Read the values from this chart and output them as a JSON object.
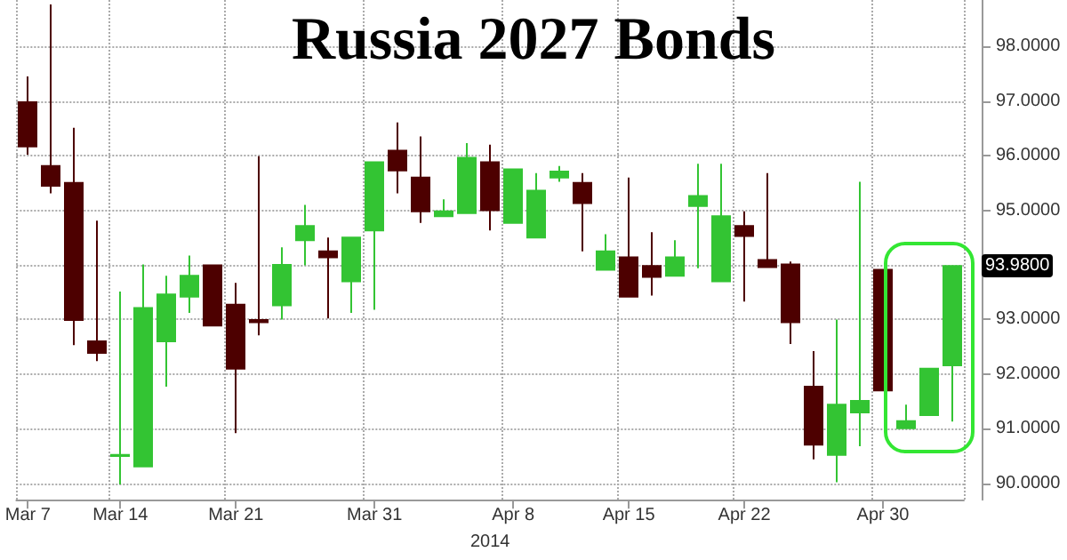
{
  "chart_data": {
    "type": "candlestick",
    "title": "Russia 2027 Bonds",
    "xlabel": "2014",
    "categories": [
      "Mar 7",
      null,
      null,
      null,
      "Mar 14",
      null,
      null,
      null,
      null,
      "Mar 21",
      null,
      null,
      null,
      null,
      null,
      "Mar 31",
      null,
      null,
      null,
      null,
      null,
      "Apr 8",
      null,
      null,
      null,
      null,
      "Apr 15",
      null,
      null,
      null,
      null,
      "Apr 22",
      null,
      null,
      null,
      null,
      null,
      "Apr 30",
      null,
      null,
      null
    ],
    "ohlc": [
      [
        96.98,
        97.45,
        96.02,
        96.17
      ],
      [
        95.81,
        98.77,
        95.31,
        95.45
      ],
      [
        95.5,
        96.51,
        92.53,
        92.99
      ],
      [
        92.6,
        94.81,
        92.24,
        92.39
      ],
      [
        90.5,
        93.51,
        89.98,
        90.52
      ],
      [
        90.31,
        94.01,
        90.31,
        93.21
      ],
      [
        92.6,
        93.8,
        91.77,
        93.46
      ],
      [
        93.42,
        94.17,
        93.12,
        93.8
      ],
      [
        93.99,
        93.99,
        92.89,
        92.89
      ],
      [
        93.27,
        93.67,
        90.92,
        92.1
      ],
      [
        92.99,
        95.99,
        92.71,
        92.95
      ],
      [
        93.26,
        94.32,
        93.0,
        94.0
      ],
      [
        94.45,
        95.1,
        93.99,
        94.71
      ],
      [
        94.25,
        94.5,
        93.02,
        94.14
      ],
      [
        93.7,
        94.5,
        93.12,
        94.5
      ],
      [
        94.63,
        95.88,
        93.18,
        95.88
      ],
      [
        96.09,
        96.61,
        95.31,
        95.73
      ],
      [
        95.6,
        96.35,
        94.77,
        94.98
      ],
      [
        94.89,
        95.2,
        94.89,
        94.98
      ],
      [
        94.95,
        96.23,
        94.95,
        95.96
      ],
      [
        95.88,
        96.2,
        94.63,
        95.0
      ],
      [
        94.77,
        95.75,
        94.77,
        95.75
      ],
      [
        94.5,
        95.68,
        94.5,
        95.36
      ],
      [
        95.6,
        95.81,
        95.52,
        95.71
      ],
      [
        95.5,
        95.68,
        94.25,
        95.13
      ],
      [
        93.91,
        94.56,
        93.91,
        94.25
      ],
      [
        94.14,
        95.6,
        93.42,
        93.42
      ],
      [
        93.98,
        94.6,
        93.44,
        93.78
      ],
      [
        93.8,
        94.45,
        93.8,
        94.14
      ],
      [
        95.08,
        95.85,
        93.94,
        95.26
      ],
      [
        93.7,
        95.85,
        93.7,
        94.89
      ],
      [
        94.71,
        94.98,
        93.33,
        94.53
      ],
      [
        94.09,
        95.68,
        93.96,
        93.96
      ],
      [
        94.01,
        94.06,
        92.55,
        92.95
      ],
      [
        91.77,
        92.42,
        90.44,
        90.71
      ],
      [
        90.52,
        93.0,
        90.02,
        91.44
      ],
      [
        91.3,
        95.52,
        90.68,
        91.51
      ],
      [
        93.91,
        93.91,
        91.7,
        91.7
      ],
      [
        91.01,
        91.44,
        91.01,
        91.14
      ],
      [
        91.25,
        92.1,
        91.25,
        92.1
      ],
      [
        92.16,
        93.98,
        91.13,
        93.98
      ]
    ],
    "colors": [
      "#4d0000",
      "#4d0000",
      "#4d0000",
      "#4d0000",
      "#33c433",
      "#33c433",
      "#33c433",
      "#33c433",
      "#4d0000",
      "#4d0000",
      "#4d0000",
      "#33c433",
      "#33c433",
      "#4d0000",
      "#33c433",
      "#33c433",
      "#4d0000",
      "#4d0000",
      "#33c433",
      "#33c433",
      "#4d0000",
      "#33c433",
      "#33c433",
      "#33c433",
      "#4d0000",
      "#33c433",
      "#4d0000",
      "#4d0000",
      "#33c433",
      "#33c433",
      "#33c433",
      "#4d0000",
      "#4d0000",
      "#4d0000",
      "#4d0000",
      "#33c433",
      "#33c433",
      "#4d0000",
      "#33c433",
      "#33c433",
      "#33c433"
    ],
    "ylim": [
      89.7,
      98.85
    ],
    "yticks": [
      {
        "value": 90,
        "label": "90.0000"
      },
      {
        "value": 91,
        "label": "91.0000"
      },
      {
        "value": 92,
        "label": "92.0000"
      },
      {
        "value": 93,
        "label": "93.0000"
      },
      {
        "value": 94,
        "label": null
      },
      {
        "value": 95,
        "label": "95.0000"
      },
      {
        "value": 96,
        "label": "96.0000"
      },
      {
        "value": 97,
        "label": "97.0000"
      },
      {
        "value": 98,
        "label": "98.0000"
      }
    ],
    "annotations": [
      "93.9800"
    ],
    "grid": true
  }
}
